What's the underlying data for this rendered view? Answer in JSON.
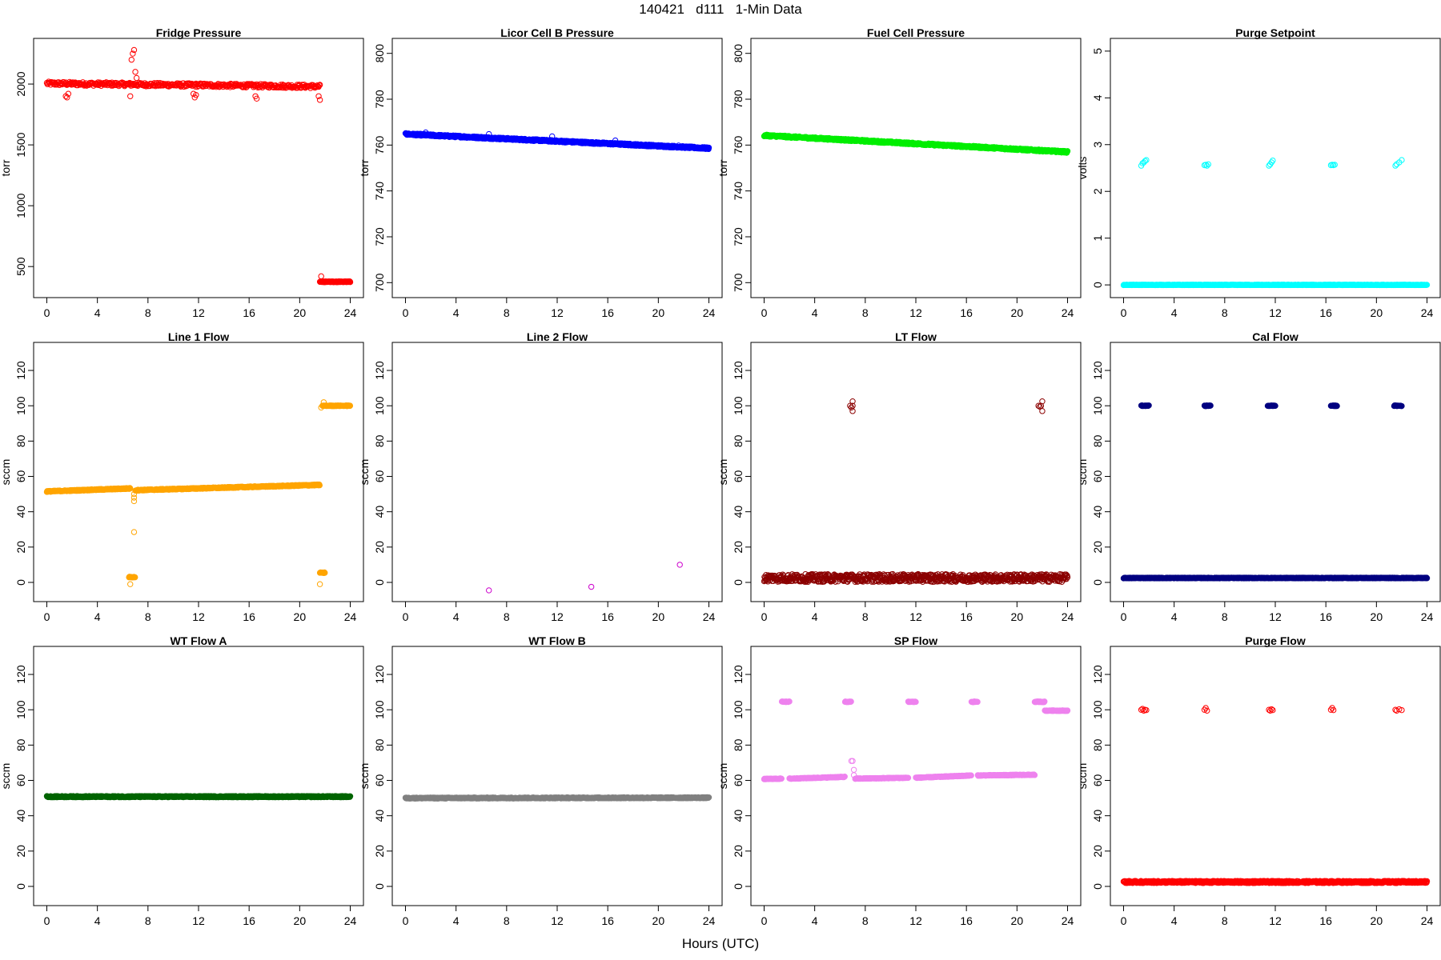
{
  "figure": {
    "title": "140421   d111   1-Min Data",
    "xlabel": "Hours (UTC)"
  },
  "chart_data": [
    {
      "type": "scatter",
      "title": "Fridge Pressure",
      "ylabel": "torr",
      "color": "#ff0000",
      "xlim": [
        0,
        24
      ],
      "ylim": [
        330,
        2290
      ],
      "xticks": [
        0,
        4,
        8,
        12,
        16,
        20,
        24
      ],
      "yticks": [
        500,
        1000,
        1500,
        2000
      ],
      "segments": [
        {
          "x0": 0,
          "x1": 21.6,
          "y0": 2005,
          "y1": 1980,
          "noise": 15,
          "step": 0.05,
          "hollow": true
        },
        {
          "x0": 21.6,
          "x1": 24,
          "y0": 375,
          "y1": 375,
          "noise": 3,
          "step": 0.02,
          "hollow": false
        }
      ],
      "points": [
        [
          1.5,
          1900
        ],
        [
          1.6,
          1890
        ],
        [
          1.7,
          1920
        ],
        [
          6.6,
          1900
        ],
        [
          6.7,
          2200
        ],
        [
          6.8,
          2250
        ],
        [
          6.9,
          2280
        ],
        [
          7.0,
          2100
        ],
        [
          7.1,
          2050
        ],
        [
          11.6,
          1920
        ],
        [
          11.7,
          1890
        ],
        [
          11.8,
          1910
        ],
        [
          16.5,
          1900
        ],
        [
          16.6,
          1880
        ],
        [
          21.5,
          1900
        ],
        [
          21.6,
          1870
        ],
        [
          21.7,
          420
        ]
      ]
    },
    {
      "type": "scatter",
      "title": "Licor Cell B Pressure",
      "ylabel": "torr",
      "color": "#0000ff",
      "xlim": [
        0,
        24
      ],
      "ylim": [
        698,
        802
      ],
      "xticks": [
        0,
        4,
        8,
        12,
        16,
        20,
        24
      ],
      "yticks": [
        700,
        720,
        740,
        760,
        780,
        800
      ],
      "segments": [
        {
          "x0": 0,
          "x1": 24,
          "y0": 764.8,
          "y1": 758.6,
          "noise": 0.4,
          "step": 0.03,
          "hollow": false
        }
      ],
      "points": [
        [
          1.6,
          765.5
        ],
        [
          6.6,
          764.8
        ],
        [
          11.6,
          763.8
        ],
        [
          16.6,
          762.0
        ],
        [
          21.6,
          759.8
        ]
      ]
    },
    {
      "type": "scatter",
      "title": "Fuel Cell Pressure",
      "ylabel": "torr",
      "color": "#00ee00",
      "xlim": [
        0,
        24
      ],
      "ylim": [
        698,
        802
      ],
      "xticks": [
        0,
        4,
        8,
        12,
        16,
        20,
        24
      ],
      "yticks": [
        700,
        720,
        740,
        760,
        780,
        800
      ],
      "segments": [
        {
          "x0": 0,
          "x1": 24,
          "y0": 764.2,
          "y1": 757.0,
          "noise": 0.4,
          "step": 0.03,
          "hollow": false
        }
      ],
      "points": []
    },
    {
      "type": "scatter",
      "title": "Purge Setpoint",
      "ylabel": "volts",
      "color": "#00ffff",
      "xlim": [
        0,
        24
      ],
      "ylim": [
        -0.05,
        5.05
      ],
      "xticks": [
        0,
        4,
        8,
        12,
        16,
        20,
        24
      ],
      "yticks": [
        0,
        1,
        2,
        3,
        4,
        5
      ],
      "segments": [
        {
          "x0": 0,
          "x1": 24,
          "y0": 0.0,
          "y1": 0.0,
          "noise": 0.005,
          "step": 0.03,
          "hollow": false
        }
      ],
      "points": [
        [
          1.4,
          2.55
        ],
        [
          1.5,
          2.6
        ],
        [
          1.6,
          2.62
        ],
        [
          1.7,
          2.65
        ],
        [
          1.8,
          2.67
        ],
        [
          6.4,
          2.56
        ],
        [
          6.5,
          2.57
        ],
        [
          6.6,
          2.55
        ],
        [
          6.7,
          2.58
        ],
        [
          11.5,
          2.55
        ],
        [
          11.6,
          2.58
        ],
        [
          11.7,
          2.62
        ],
        [
          11.8,
          2.66
        ],
        [
          16.4,
          2.56
        ],
        [
          16.5,
          2.57
        ],
        [
          16.6,
          2.56
        ],
        [
          16.7,
          2.57
        ],
        [
          21.5,
          2.55
        ],
        [
          21.6,
          2.58
        ],
        [
          21.8,
          2.62
        ],
        [
          22.0,
          2.67
        ]
      ]
    },
    {
      "type": "scatter",
      "title": "Line 1 Flow",
      "ylabel": "sccm",
      "color": "#ffa500",
      "xlim": [
        0,
        24
      ],
      "ylim": [
        -5,
        130
      ],
      "xticks": [
        0,
        4,
        8,
        12,
        16,
        20,
        24
      ],
      "yticks": [
        0,
        20,
        40,
        60,
        80,
        100,
        120
      ],
      "segments": [
        {
          "x0": 0,
          "x1": 6.6,
          "y0": 51.5,
          "y1": 53.2,
          "noise": 0.3,
          "step": 0.03,
          "hollow": false
        },
        {
          "x0": 7.0,
          "x1": 21.6,
          "y0": 52.2,
          "y1": 55.2,
          "noise": 0.3,
          "step": 0.03,
          "hollow": false
        },
        {
          "x0": 21.8,
          "x1": 24,
          "y0": 100,
          "y1": 100,
          "noise": 0.2,
          "step": 0.03,
          "hollow": false
        },
        {
          "x0": 6.5,
          "x1": 7.0,
          "y0": 3,
          "y1": 3,
          "noise": 0.2,
          "step": 0.03,
          "hollow": false
        },
        {
          "x0": 21.6,
          "x1": 22.0,
          "y0": 5.5,
          "y1": 5.5,
          "noise": 0.2,
          "step": 0.03,
          "hollow": false
        }
      ],
      "points": [
        [
          6.9,
          28.5
        ],
        [
          6.9,
          46
        ],
        [
          6.9,
          48
        ],
        [
          6.9,
          50
        ],
        [
          6.6,
          -1
        ],
        [
          21.6,
          -1
        ],
        [
          21.7,
          99
        ],
        [
          21.9,
          102
        ]
      ]
    },
    {
      "type": "scatter",
      "title": "Line 2 Flow",
      "ylabel": "sccm",
      "color": "#cc00cc",
      "xlim": [
        0,
        24
      ],
      "ylim": [
        -5,
        130
      ],
      "xticks": [
        0,
        4,
        8,
        12,
        16,
        20,
        24
      ],
      "yticks": [
        0,
        20,
        40,
        60,
        80,
        100,
        120
      ],
      "segments": [],
      "points": [
        [
          6.6,
          -4.5
        ],
        [
          14.7,
          -2.5
        ],
        [
          21.7,
          10
        ]
      ]
    },
    {
      "type": "scatter",
      "title": "LT Flow",
      "ylabel": "sccm",
      "color": "#8b0000",
      "xlim": [
        0,
        24
      ],
      "ylim": [
        -5,
        130
      ],
      "xticks": [
        0,
        4,
        8,
        12,
        16,
        20,
        24
      ],
      "yticks": [
        0,
        20,
        40,
        60,
        80,
        100,
        120
      ],
      "segments": [
        {
          "x0": 0,
          "x1": 24,
          "y0": 2.5,
          "y1": 2.5,
          "noise": 2.2,
          "step": 0.03,
          "hollow": true
        }
      ],
      "points": [
        [
          6.8,
          100
        ],
        [
          6.9,
          99
        ],
        [
          7.0,
          100
        ],
        [
          7.0,
          102.5
        ],
        [
          7.0,
          97
        ],
        [
          21.7,
          100
        ],
        [
          21.8,
          99.5
        ],
        [
          21.9,
          100
        ],
        [
          22.0,
          102.5
        ],
        [
          22.0,
          97
        ]
      ]
    },
    {
      "type": "scatter",
      "title": "Cal Flow",
      "ylabel": "sccm",
      "color": "#000080",
      "xlim": [
        0,
        24
      ],
      "ylim": [
        -5,
        130
      ],
      "xticks": [
        0,
        4,
        8,
        12,
        16,
        20,
        24
      ],
      "yticks": [
        0,
        20,
        40,
        60,
        80,
        100,
        120
      ],
      "segments": [
        {
          "x0": 0,
          "x1": 24,
          "y0": 2.5,
          "y1": 2.5,
          "noise": 0.2,
          "step": 0.03,
          "hollow": false
        },
        {
          "x0": 1.4,
          "x1": 2.0,
          "y0": 100,
          "y1": 100,
          "noise": 0.2,
          "step": 0.03,
          "hollow": false
        },
        {
          "x0": 6.4,
          "x1": 6.9,
          "y0": 100,
          "y1": 100,
          "noise": 0.2,
          "step": 0.03,
          "hollow": false
        },
        {
          "x0": 11.4,
          "x1": 12.0,
          "y0": 100,
          "y1": 100,
          "noise": 0.2,
          "step": 0.03,
          "hollow": false
        },
        {
          "x0": 16.4,
          "x1": 16.9,
          "y0": 100,
          "y1": 100,
          "noise": 0.2,
          "step": 0.03,
          "hollow": false
        },
        {
          "x0": 21.4,
          "x1": 22.0,
          "y0": 100,
          "y1": 100,
          "noise": 0.2,
          "step": 0.03,
          "hollow": false
        }
      ],
      "points": []
    },
    {
      "type": "scatter",
      "title": "WT Flow A",
      "ylabel": "sccm",
      "color": "#006400",
      "xlim": [
        0,
        24
      ],
      "ylim": [
        -5,
        130
      ],
      "xticks": [
        0,
        4,
        8,
        12,
        16,
        20,
        24
      ],
      "yticks": [
        0,
        20,
        40,
        60,
        80,
        100,
        120
      ],
      "segments": [
        {
          "x0": 0,
          "x1": 24,
          "y0": 50.8,
          "y1": 50.8,
          "noise": 0.35,
          "step": 0.03,
          "hollow": false
        }
      ],
      "points": []
    },
    {
      "type": "scatter",
      "title": "WT Flow B",
      "ylabel": "sccm",
      "color": "#808080",
      "xlim": [
        0,
        24
      ],
      "ylim": [
        -5,
        130
      ],
      "xticks": [
        0,
        4,
        8,
        12,
        16,
        20,
        24
      ],
      "yticks": [
        0,
        20,
        40,
        60,
        80,
        100,
        120
      ],
      "segments": [
        {
          "x0": 0,
          "x1": 24,
          "y0": 50.0,
          "y1": 50.2,
          "noise": 0.3,
          "step": 0.03,
          "hollow": false
        }
      ],
      "points": []
    },
    {
      "type": "scatter",
      "title": "SP Flow",
      "ylabel": "sccm",
      "color": "#ee82ee",
      "xlim": [
        0,
        24
      ],
      "ylim": [
        -5,
        130
      ],
      "xticks": [
        0,
        4,
        8,
        12,
        16,
        20,
        24
      ],
      "yticks": [
        0,
        20,
        40,
        60,
        80,
        100,
        120
      ],
      "segments": [
        {
          "x0": 0,
          "x1": 1.4,
          "y0": 60.8,
          "y1": 61.0,
          "noise": 0.2,
          "step": 0.03,
          "hollow": false
        },
        {
          "x0": 2.0,
          "x1": 6.4,
          "y0": 61.0,
          "y1": 62.0,
          "noise": 0.2,
          "step": 0.03,
          "hollow": false
        },
        {
          "x0": 7.2,
          "x1": 11.4,
          "y0": 61.0,
          "y1": 61.5,
          "noise": 0.2,
          "step": 0.03,
          "hollow": false
        },
        {
          "x0": 12.0,
          "x1": 16.4,
          "y0": 61.5,
          "y1": 62.8,
          "noise": 0.2,
          "step": 0.03,
          "hollow": false
        },
        {
          "x0": 16.9,
          "x1": 21.4,
          "y0": 62.8,
          "y1": 63.2,
          "noise": 0.2,
          "step": 0.03,
          "hollow": false
        },
        {
          "x0": 1.4,
          "x1": 2.0,
          "y0": 104.5,
          "y1": 104.5,
          "noise": 0.2,
          "step": 0.03,
          "hollow": false
        },
        {
          "x0": 6.4,
          "x1": 6.9,
          "y0": 104.5,
          "y1": 104.5,
          "noise": 0.2,
          "step": 0.03,
          "hollow": false
        },
        {
          "x0": 11.4,
          "x1": 12.0,
          "y0": 104.5,
          "y1": 104.5,
          "noise": 0.2,
          "step": 0.03,
          "hollow": false
        },
        {
          "x0": 16.4,
          "x1": 16.9,
          "y0": 104.5,
          "y1": 104.5,
          "noise": 0.2,
          "step": 0.03,
          "hollow": false
        },
        {
          "x0": 21.4,
          "x1": 22.2,
          "y0": 104.5,
          "y1": 104.5,
          "noise": 0.2,
          "step": 0.03,
          "hollow": false
        },
        {
          "x0": 22.2,
          "x1": 24,
          "y0": 99.5,
          "y1": 99.5,
          "noise": 0.2,
          "step": 0.03,
          "hollow": false
        }
      ],
      "points": [
        [
          6.9,
          71
        ],
        [
          7.0,
          71
        ],
        [
          7.1,
          66
        ],
        [
          7.1,
          63
        ]
      ]
    },
    {
      "type": "scatter",
      "title": "Purge Flow",
      "ylabel": "sccm",
      "color": "#ff0000",
      "xlim": [
        0,
        24
      ],
      "ylim": [
        -5,
        130
      ],
      "xticks": [
        0,
        4,
        8,
        12,
        16,
        20,
        24
      ],
      "yticks": [
        0,
        20,
        40,
        60,
        80,
        100,
        120
      ],
      "segments": [
        {
          "x0": 0,
          "x1": 24,
          "y0": 2.5,
          "y1": 2.5,
          "noise": 0.6,
          "step": 0.03,
          "hollow": true
        }
      ],
      "points": [
        [
          1.4,
          100
        ],
        [
          1.5,
          100.5
        ],
        [
          1.6,
          99.5
        ],
        [
          1.7,
          100
        ],
        [
          1.8,
          99.8
        ],
        [
          6.4,
          100
        ],
        [
          6.5,
          101
        ],
        [
          6.6,
          99.5
        ],
        [
          11.5,
          100
        ],
        [
          11.6,
          99.5
        ],
        [
          11.7,
          100.3
        ],
        [
          11.8,
          99.8
        ],
        [
          16.4,
          100
        ],
        [
          16.5,
          101
        ],
        [
          16.6,
          99.8
        ],
        [
          21.5,
          100
        ],
        [
          21.6,
          99.5
        ],
        [
          21.8,
          100.3
        ],
        [
          22.0,
          99.8
        ]
      ]
    }
  ]
}
